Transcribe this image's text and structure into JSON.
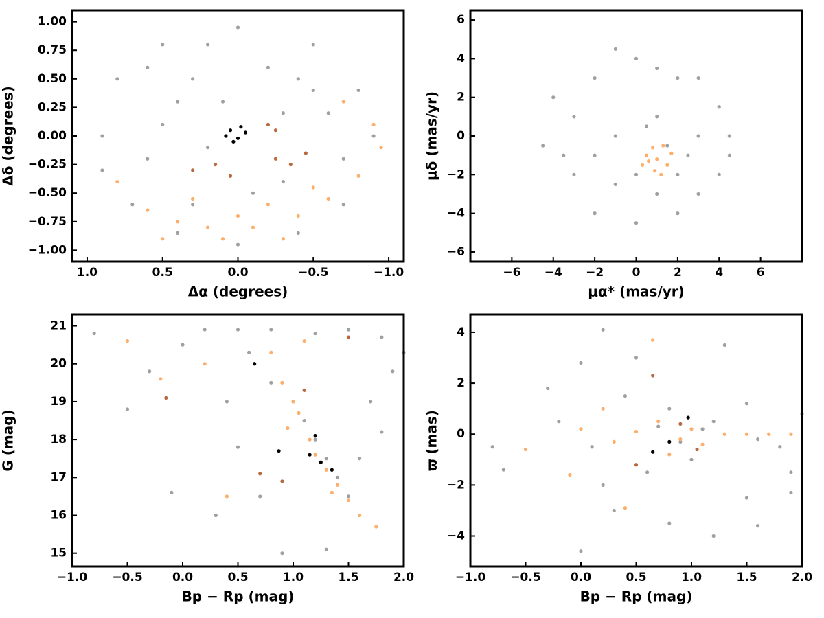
{
  "chart_data": [
    {
      "type": "scatter",
      "xlabel": "Δα (degrees)",
      "ylabel": "Δδ (degrees)",
      "xlim": [
        1.1,
        -1.1
      ],
      "ylim": [
        -1.1,
        1.1
      ],
      "xticks": [
        {
          "value": 1,
          "label": "1.0"
        },
        {
          "value": 0.5,
          "label": "0.5"
        },
        {
          "value": 0,
          "label": "0.0"
        },
        {
          "value": -0.5,
          "label": "−0.5"
        },
        {
          "value": -1,
          "label": "−1.0"
        }
      ],
      "yticks": [
        {
          "value": -1,
          "label": "−1.00"
        },
        {
          "value": -0.75,
          "label": "−0.75"
        },
        {
          "value": -0.5,
          "label": "−0.50"
        },
        {
          "value": -0.25,
          "label": "−0.25"
        },
        {
          "value": 0,
          "label": "0.00"
        },
        {
          "value": 0.25,
          "label": "0.25"
        },
        {
          "value": 0.5,
          "label": "0.50"
        },
        {
          "value": 0.75,
          "label": "0.75"
        },
        {
          "value": 1,
          "label": "1.00"
        }
      ],
      "series": [
        {
          "color": "#a0a0a0",
          "x": [
            0.8,
            0.5,
            0,
            -0.5,
            -0.8,
            -0.9,
            0.9,
            0.9,
            0.7,
            0.4,
            0,
            -0.4,
            -0.7,
            0.3,
            -0.2,
            0.1,
            -0.3,
            0.5,
            0.6,
            -0.5,
            0.2,
            -0.1,
            0.3,
            -0.3,
            0.6,
            -0.6,
            0.2,
            -0.7,
            0.4,
            -0.4
          ],
          "y": [
            0.5,
            0.8,
            0.95,
            0.8,
            0.4,
            0,
            0,
            -0.3,
            -0.6,
            -0.85,
            -0.95,
            -0.85,
            -0.6,
            0.5,
            0.6,
            0.3,
            0.2,
            0.1,
            -0.2,
            0.4,
            -0.1,
            -0.5,
            -0.6,
            -0.4,
            0.6,
            0.2,
            0.8,
            -0.2,
            0.3,
            0.5
          ]
        },
        {
          "color": "#fdae6b",
          "x": [
            -0.7,
            -0.9,
            -0.95,
            -0.8,
            -0.6,
            -0.4,
            -0.1,
            0.2,
            0.4,
            0.6,
            0.8,
            0.1,
            -0.2,
            -0.5,
            0.3,
            -0.3,
            0,
            0.5
          ],
          "y": [
            0.3,
            0.1,
            -0.1,
            -0.35,
            -0.55,
            -0.7,
            -0.8,
            -0.8,
            -0.75,
            -0.65,
            -0.4,
            -0.9,
            -0.6,
            -0.45,
            -0.55,
            -0.9,
            -0.7,
            -0.9
          ]
        },
        {
          "color": "#b8693f",
          "x": [
            0.3,
            0.15,
            0.05,
            -0.25,
            -0.35,
            -0.2,
            -0.25,
            -0.45
          ],
          "y": [
            -0.3,
            -0.25,
            -0.35,
            -0.2,
            -0.25,
            0.1,
            0.05,
            -0.15
          ]
        },
        {
          "color": "#000000",
          "x": [
            0.05,
            0,
            -0.05,
            0.03,
            -0.02,
            0.08
          ],
          "y": [
            0.05,
            -0.02,
            0.03,
            -0.05,
            0.08,
            0
          ]
        }
      ]
    },
    {
      "type": "scatter",
      "xlabel": "μα* (mas/yr)",
      "ylabel": "μδ (mas/yr)",
      "xlim": [
        -8,
        8
      ],
      "ylim": [
        -6.5,
        6.5
      ],
      "xticks": [
        {
          "value": -6,
          "label": "−6"
        },
        {
          "value": -4,
          "label": "−4"
        },
        {
          "value": -2,
          "label": "−2"
        },
        0,
        2,
        4,
        6
      ],
      "yticks": [
        {
          "value": -6,
          "label": "−6"
        },
        {
          "value": -4,
          "label": "−4"
        },
        {
          "value": -2,
          "label": "−2"
        },
        0,
        2,
        4,
        6
      ],
      "series": [
        {
          "color": "#a0a0a0",
          "x": [
            -4,
            -4.5,
            -3,
            -2,
            0,
            2,
            4,
            4.5,
            4,
            2,
            0,
            -1,
            -2,
            -3,
            1,
            3,
            2,
            0,
            -1,
            1,
            3,
            -1,
            1,
            3,
            -2,
            0.5,
            2.5,
            -3.5,
            1.5,
            4.5
          ],
          "y": [
            2,
            -0.5,
            -2,
            -4,
            -4.5,
            -4,
            -2,
            0,
            1.5,
            3,
            4,
            4.5,
            3,
            1,
            3.5,
            3,
            -2,
            -2,
            0,
            1,
            0,
            -2.5,
            -3,
            -3,
            -1,
            0.5,
            -1,
            -1,
            -0.5,
            -1
          ]
        },
        {
          "color": "#fdae6b",
          "x": [
            1,
            0.5,
            1.5,
            0.8,
            1.2,
            0.3,
            1.7,
            0.9,
            1.3,
            0.6
          ],
          "y": [
            -1.2,
            -1,
            -1.5,
            -0.6,
            -2,
            -1.5,
            -0.9,
            -1.8,
            -0.5,
            -1.3
          ]
        }
      ]
    },
    {
      "type": "scatter",
      "xlabel": "Bp − Rp (mag)",
      "ylabel": "G (mag)",
      "xlim": [
        -1,
        2
      ],
      "ylim": [
        14.65,
        21.3
      ],
      "xticks": [
        {
          "value": -1,
          "label": "−1.0"
        },
        {
          "value": -0.5,
          "label": "−0.5"
        },
        {
          "value": 0,
          "label": "0.0"
        },
        {
          "value": 0.5,
          "label": "0.5"
        },
        {
          "value": 1,
          "label": "1.0"
        },
        {
          "value": 1.5,
          "label": "1.5"
        },
        {
          "value": 2,
          "label": "2.0"
        }
      ],
      "yticks": [
        15,
        16,
        17,
        18,
        19,
        20,
        21
      ],
      "series": [
        {
          "color": "#a0a0a0",
          "x": [
            -0.8,
            -0.5,
            -0.3,
            0,
            0.2,
            0.5,
            0.8,
            1.2,
            1.5,
            1.8,
            2,
            1.9,
            0.6,
            0.8,
            1,
            1.1,
            1.2,
            1.3,
            1.4,
            1.5,
            0.3,
            0.7,
            1.6,
            1.7,
            0.4,
            0.9,
            1.3,
            -0.1,
            1.8,
            0.5
          ],
          "y": [
            20.8,
            18.8,
            19.8,
            20.5,
            20.9,
            20.9,
            20.9,
            20.8,
            20.9,
            20.7,
            20.3,
            19.8,
            20.3,
            19.5,
            19,
            18.5,
            18,
            17.5,
            17,
            16.5,
            16,
            16.5,
            17.5,
            19,
            19,
            15,
            15.1,
            16.6,
            18.2,
            17.8
          ]
        },
        {
          "color": "#fdae6b",
          "x": [
            0.9,
            1,
            1.05,
            0.95,
            1.15,
            1.2,
            1.3,
            1.4,
            1.5,
            1.6,
            1.75,
            0.8,
            1.1,
            -0.5,
            -0.2,
            0.2,
            0.4,
            1.35
          ],
          "y": [
            19.5,
            19,
            18.7,
            18.3,
            18,
            17.6,
            17.2,
            16.8,
            16.4,
            16,
            15.7,
            20.3,
            20.6,
            20.6,
            19.6,
            20,
            16.5,
            16.6
          ]
        },
        {
          "color": "#b8693f",
          "x": [
            1.1,
            0.7,
            1.5,
            0.9,
            -0.15
          ],
          "y": [
            19.3,
            17.1,
            20.7,
            16.9,
            19.1
          ]
        },
        {
          "color": "#000000",
          "x": [
            0.65,
            0.87,
            1.15,
            1.25,
            1.35,
            1.2
          ],
          "y": [
            20,
            17.7,
            17.6,
            17.4,
            17.2,
            18.1
          ]
        }
      ]
    },
    {
      "type": "scatter",
      "xlabel": "Bp − Rp (mag)",
      "ylabel": "ϖ (mas)",
      "xlim": [
        -1,
        2
      ],
      "ylim": [
        -5.2,
        4.7
      ],
      "xticks": [
        {
          "value": -1,
          "label": "−1.0"
        },
        {
          "value": -0.5,
          "label": "−0.5"
        },
        {
          "value": 0,
          "label": "0.0"
        },
        {
          "value": 0.5,
          "label": "0.5"
        },
        {
          "value": 1,
          "label": "1.0"
        },
        {
          "value": 1.5,
          "label": "1.5"
        },
        {
          "value": 2,
          "label": "2.0"
        }
      ],
      "yticks": [
        {
          "value": -4,
          "label": "−4"
        },
        {
          "value": -2,
          "label": "−2"
        },
        0,
        2,
        4
      ],
      "series": [
        {
          "color": "#a0a0a0",
          "x": [
            -0.8,
            -0.7,
            -0.3,
            0,
            0.2,
            0.4,
            0.6,
            0.8,
            1,
            1.2,
            1.5,
            1.8,
            2,
            1.9,
            1.5,
            0.5,
            1.3,
            0.3,
            0.8,
            -0.2,
            0.1,
            0.7,
            1.1,
            1.6,
            0.9,
            0.2,
            0,
            1.6,
            1.9,
            1.2
          ],
          "y": [
            -0.5,
            -1.4,
            1.8,
            2.8,
            -2,
            1.5,
            -1.5,
            1,
            -1,
            0.5,
            1.2,
            -0.5,
            0.8,
            -1.5,
            -2.5,
            3,
            3.5,
            -3,
            -3.5,
            0.5,
            -0.5,
            0.3,
            0.2,
            -0.2,
            -0.3,
            4.1,
            -4.6,
            -3.6,
            -2.3,
            -4
          ]
        },
        {
          "color": "#fdae6b",
          "x": [
            -0.5,
            0,
            0.3,
            0.5,
            0.7,
            0.9,
            1,
            1.1,
            1.3,
            1.5,
            1.7,
            1.9,
            0.65,
            0.4,
            -0.1,
            0.2,
            0.8
          ],
          "y": [
            -0.6,
            0.2,
            -0.3,
            0.1,
            0.5,
            -0.2,
            0.2,
            -0.4,
            0,
            0,
            0,
            0,
            3.7,
            -2.9,
            -1.6,
            1,
            -0.8
          ]
        },
        {
          "color": "#b8693f",
          "x": [
            0.65,
            0.9,
            1.05,
            0.5
          ],
          "y": [
            2.3,
            0.4,
            -0.6,
            -1.2
          ]
        },
        {
          "color": "#000000",
          "x": [
            0.65,
            0.97,
            0.8
          ],
          "y": [
            -0.7,
            0.65,
            -0.3
          ]
        }
      ]
    }
  ]
}
